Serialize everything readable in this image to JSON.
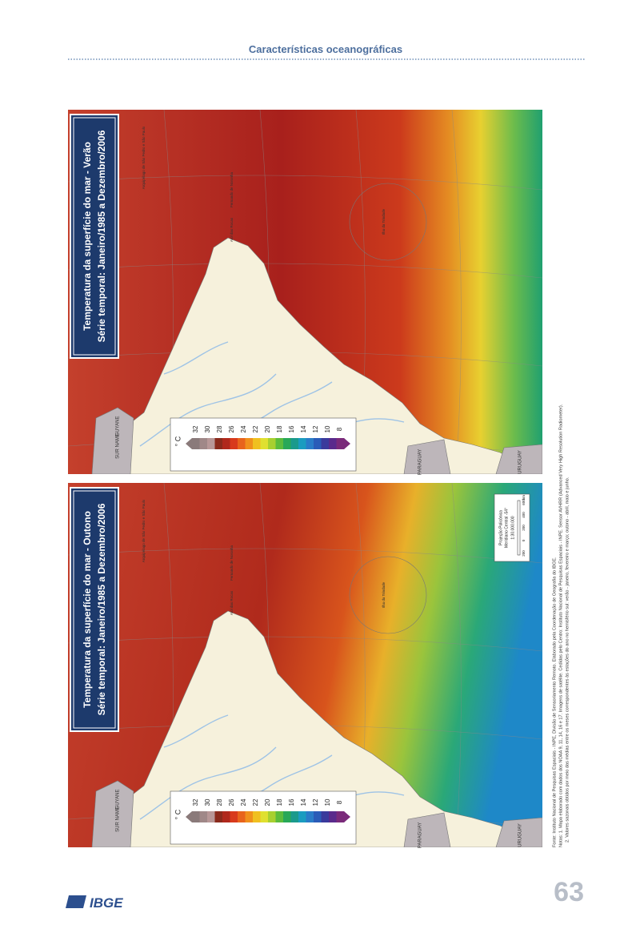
{
  "header": {
    "title": "Características oceanográficas"
  },
  "maps": [
    {
      "title": "Temperatura da superfície do mar - Verão",
      "subtitle": "Série temporal: Janeiro/1985 a Dezembro/2006"
    },
    {
      "title": "Temperatura da superfície do mar - Outono",
      "subtitle": "Série temporal: Janeiro/1985 a Dezembro/2006"
    }
  ],
  "legend": {
    "unit": "° C",
    "ticks": [
      32,
      30,
      28,
      26,
      24,
      22,
      20,
      18,
      16,
      14,
      12,
      10,
      8
    ]
  },
  "labels": [
    "SUR NAME",
    "GUYANE",
    "PARAGUAY",
    "URUGUAY",
    "Fernando de Noronha",
    "Atol das Rocas",
    "Arquipélago de São Pedro e São Paulo",
    "Ilha da Trindade"
  ],
  "scale": {
    "projection": "Projeção Policônica",
    "meridian": "Meridiano Central -54°",
    "ratio": "1:30.000.000",
    "ticks": [
      "200",
      "0",
      "200",
      "400",
      "600"
    ],
    "unit": "km"
  },
  "notes": [
    "Fonte: Instituto Nacional de Pesquisas Espaciais - INPE, Divisão de Sensoriamento Remoto. Elaborado pela Coordenação de Geografia do IBGE.",
    "Notas: 1. Mapa elaborado com dados dos NOAA 9, 11, 14, 16 e 17. Imagens de satélite. Cedidas pelo Centro: Instituto Nacional de Pesquisas Espaciais - INPE. Sensor AVHRR (Advanced Very High Resolution Radiometer).",
    "2. Valores sazonais obtidos por meio das médias entre os meses correspondentes às estações do ano no hemisfério sul: verão - janeiro, fevereiro e março; outono - abril, maio e junho."
  ],
  "footer": {
    "logo": "IBGE",
    "page": "63"
  }
}
